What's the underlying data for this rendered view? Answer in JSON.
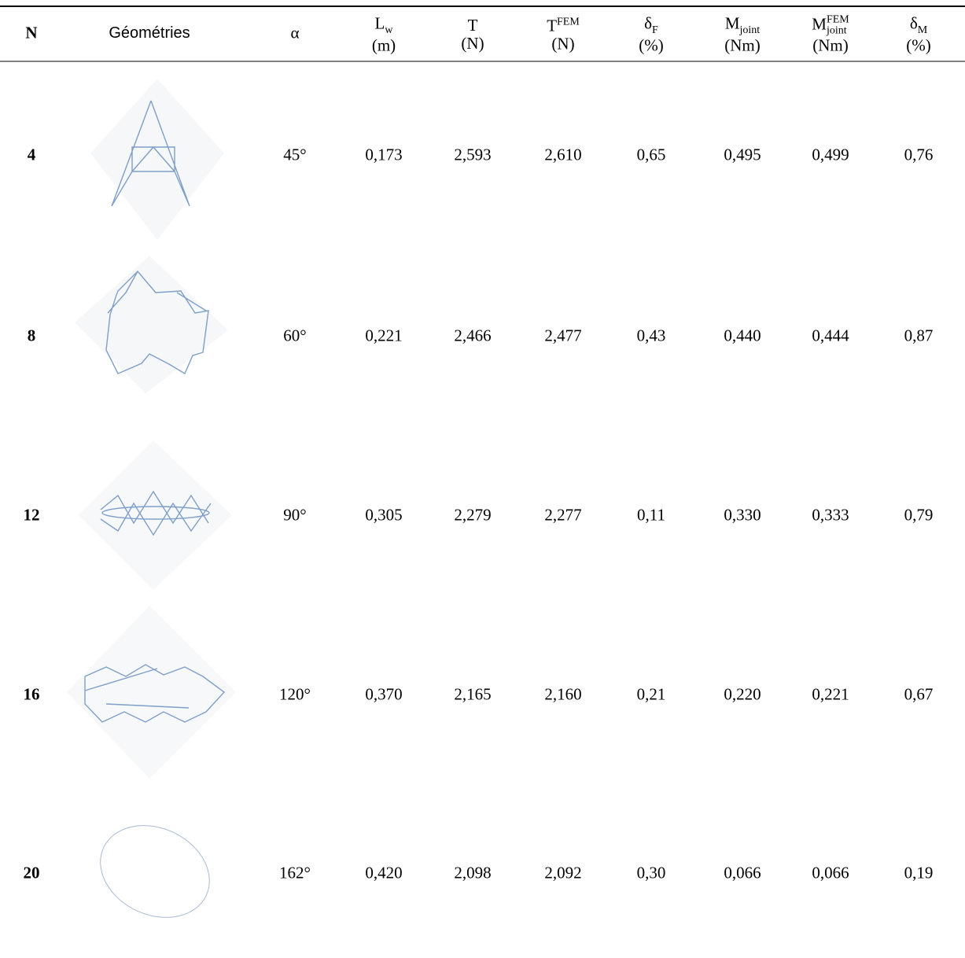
{
  "table": {
    "header": [
      {
        "symbol": "N"
      },
      {
        "symbol": "Géométries"
      },
      {
        "symbol": "α"
      },
      {
        "symbol": "L",
        "sub": "w",
        "unit": "(m)"
      },
      {
        "symbol": "T",
        "unit": "(N)"
      },
      {
        "symbol": "T",
        "sup": "FEM",
        "unit": "(N)"
      },
      {
        "symbol": "δ",
        "sub": "F",
        "unit": "(%)"
      },
      {
        "symbol": "M",
        "sub": "joint",
        "unit": "(Nm)"
      },
      {
        "symbol": "M",
        "sup": "FEM",
        "sub": "joint",
        "unit": "(Nm)"
      },
      {
        "symbol": "δ",
        "sub": "M",
        "unit": "(%)"
      }
    ],
    "rows": [
      [
        "4",
        "45°",
        "0,173",
        "2,593",
        "2,610",
        "0,65",
        "0,495",
        "0,499",
        "0,76"
      ],
      [
        "8",
        "60°",
        "0,221",
        "2,466",
        "2,477",
        "0,43",
        "0,440",
        "0,444",
        "0,87"
      ],
      [
        "12",
        "90°",
        "0,305",
        "2,279",
        "2,277",
        "0,11",
        "0,330",
        "0,333",
        "0,79"
      ],
      [
        "16",
        "120°",
        "0,370",
        "2,165",
        "2,160",
        "0,21",
        "0,220",
        "0,221",
        "0,67"
      ],
      [
        "20",
        "162°",
        "0,420",
        "2,098",
        "2,092",
        "0,30",
        "0,066",
        "0,066",
        "0,19"
      ]
    ]
  }
}
